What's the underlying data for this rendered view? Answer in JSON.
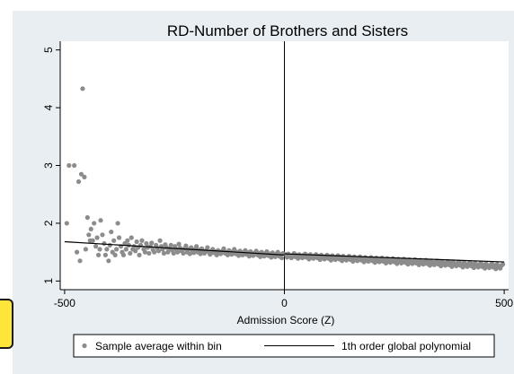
{
  "chart_data": {
    "type": "scatter",
    "title": "RD-Number of Brothers and Sisters",
    "xlabel": "Admission Score (Z)",
    "ylabel": "",
    "xlim": [
      -510,
      510
    ],
    "ylim": [
      0.85,
      5.15
    ],
    "x_ticks": [
      -500,
      0,
      500
    ],
    "x_tick_labels": [
      "-500",
      "0",
      "500"
    ],
    "y_ticks": [
      1,
      2,
      3,
      4,
      5
    ],
    "y_tick_labels": [
      "1",
      "2",
      "3",
      "4",
      "5"
    ],
    "cutoff_x": 0,
    "grid": false,
    "legend_position": "bottom",
    "series": [
      {
        "name": "Sample average within bin",
        "kind": "points",
        "color": "#8c8c8c",
        "points": [
          [
            -495,
            2.0
          ],
          [
            -490,
            3.0
          ],
          [
            -478,
            3.0
          ],
          [
            -472,
            1.5
          ],
          [
            -468,
            2.72
          ],
          [
            -465,
            1.35
          ],
          [
            -462,
            2.85
          ],
          [
            -459,
            4.33
          ],
          [
            -455,
            2.8
          ],
          [
            -452,
            1.55
          ],
          [
            -448,
            2.1
          ],
          [
            -445,
            1.8
          ],
          [
            -442,
            1.7
          ],
          [
            -440,
            1.9
          ],
          [
            -436,
            1.7
          ],
          [
            -433,
            2.0
          ],
          [
            -429,
            1.6
          ],
          [
            -426,
            1.75
          ],
          [
            -423,
            1.45
          ],
          [
            -420,
            1.55
          ],
          [
            -418,
            2.05
          ],
          [
            -414,
            1.8
          ],
          [
            -410,
            1.65
          ],
          [
            -407,
            1.45
          ],
          [
            -404,
            1.55
          ],
          [
            -400,
            1.35
          ],
          [
            -397,
            1.62
          ],
          [
            -394,
            1.85
          ],
          [
            -391,
            1.5
          ],
          [
            -388,
            1.7
          ],
          [
            -385,
            1.45
          ],
          [
            -382,
            1.55
          ],
          [
            -379,
            2.0
          ],
          [
            -376,
            1.75
          ],
          [
            -372,
            1.6
          ],
          [
            -369,
            1.5
          ],
          [
            -366,
            1.45
          ],
          [
            -363,
            1.65
          ],
          [
            -360,
            1.55
          ],
          [
            -357,
            1.7
          ],
          [
            -354,
            1.62
          ],
          [
            -351,
            1.48
          ],
          [
            -348,
            1.75
          ],
          [
            -345,
            1.55
          ],
          [
            -342,
            1.6
          ],
          [
            -339,
            1.52
          ],
          [
            -336,
            1.68
          ],
          [
            -333,
            1.58
          ],
          [
            -330,
            1.45
          ],
          [
            -327,
            1.62
          ],
          [
            -324,
            1.7
          ],
          [
            -320,
            1.55
          ],
          [
            -317,
            1.5
          ],
          [
            -314,
            1.65
          ],
          [
            -311,
            1.58
          ],
          [
            -308,
            1.48
          ],
          [
            -305,
            1.6
          ],
          [
            -302,
            1.66
          ],
          [
            -299,
            1.54
          ],
          [
            -296,
            1.5
          ],
          [
            -292,
            1.62
          ],
          [
            -289,
            1.57
          ],
          [
            -286,
            1.52
          ],
          [
            -283,
            1.7
          ],
          [
            -280,
            1.6
          ],
          [
            -277,
            1.55
          ],
          [
            -274,
            1.48
          ],
          [
            -271,
            1.63
          ],
          [
            -268,
            1.58
          ],
          [
            -265,
            1.5
          ],
          [
            -261,
            1.56
          ],
          [
            -258,
            1.62
          ],
          [
            -255,
            1.53
          ],
          [
            -252,
            1.48
          ],
          [
            -249,
            1.6
          ],
          [
            -246,
            1.55
          ],
          [
            -243,
            1.5
          ],
          [
            -240,
            1.64
          ],
          [
            -237,
            1.57
          ],
          [
            -234,
            1.52
          ],
          [
            -230,
            1.48
          ],
          [
            -227,
            1.56
          ],
          [
            -224,
            1.61
          ],
          [
            -221,
            1.5
          ],
          [
            -218,
            1.55
          ],
          [
            -215,
            1.47
          ],
          [
            -212,
            1.58
          ],
          [
            -209,
            1.52
          ],
          [
            -206,
            1.49
          ],
          [
            -203,
            1.55
          ],
          [
            -200,
            1.6
          ],
          [
            -197,
            1.5
          ],
          [
            -194,
            1.54
          ],
          [
            -191,
            1.47
          ],
          [
            -188,
            1.56
          ],
          [
            -185,
            1.51
          ],
          [
            -182,
            1.48
          ],
          [
            -178,
            1.53
          ],
          [
            -175,
            1.58
          ],
          [
            -172,
            1.5
          ],
          [
            -169,
            1.46
          ],
          [
            -166,
            1.52
          ],
          [
            -163,
            1.55
          ],
          [
            -160,
            1.49
          ],
          [
            -157,
            1.51
          ],
          [
            -154,
            1.45
          ],
          [
            -151,
            1.53
          ],
          [
            -148,
            1.5
          ],
          [
            -145,
            1.47
          ],
          [
            -141,
            1.52
          ],
          [
            -138,
            1.56
          ],
          [
            -135,
            1.48
          ],
          [
            -132,
            1.5
          ],
          [
            -129,
            1.45
          ],
          [
            -126,
            1.53
          ],
          [
            -123,
            1.49
          ],
          [
            -120,
            1.46
          ],
          [
            -117,
            1.51
          ],
          [
            -114,
            1.55
          ],
          [
            -111,
            1.47
          ],
          [
            -108,
            1.5
          ],
          [
            -104,
            1.44
          ],
          [
            -101,
            1.52
          ],
          [
            -98,
            1.48
          ],
          [
            -95,
            1.45
          ],
          [
            -92,
            1.5
          ],
          [
            -89,
            1.53
          ],
          [
            -86,
            1.46
          ],
          [
            -83,
            1.49
          ],
          [
            -80,
            1.43
          ],
          [
            -77,
            1.51
          ],
          [
            -74,
            1.47
          ],
          [
            -71,
            1.44
          ],
          [
            -67,
            1.49
          ],
          [
            -64,
            1.52
          ],
          [
            -61,
            1.45
          ],
          [
            -58,
            1.48
          ],
          [
            -55,
            1.42
          ],
          [
            -52,
            1.5
          ],
          [
            -49,
            1.46
          ],
          [
            -46,
            1.43
          ],
          [
            -43,
            1.48
          ],
          [
            -40,
            1.51
          ],
          [
            -37,
            1.44
          ],
          [
            -33,
            1.47
          ],
          [
            -30,
            1.41
          ],
          [
            -27,
            1.49
          ],
          [
            -24,
            1.45
          ],
          [
            -21,
            1.42
          ],
          [
            -18,
            1.47
          ],
          [
            -15,
            1.5
          ],
          [
            -12,
            1.43
          ],
          [
            -9,
            1.46
          ],
          [
            -6,
            1.4
          ],
          [
            -3,
            1.48
          ],
          [
            3,
            1.46
          ],
          [
            6,
            1.41
          ],
          [
            9,
            1.47
          ],
          [
            12,
            1.44
          ],
          [
            16,
            1.4
          ],
          [
            19,
            1.45
          ],
          [
            22,
            1.48
          ],
          [
            25,
            1.42
          ],
          [
            28,
            1.45
          ],
          [
            31,
            1.39
          ],
          [
            34,
            1.46
          ],
          [
            37,
            1.43
          ],
          [
            41,
            1.4
          ],
          [
            44,
            1.45
          ],
          [
            47,
            1.47
          ],
          [
            50,
            1.41
          ],
          [
            53,
            1.44
          ],
          [
            56,
            1.38
          ],
          [
            59,
            1.46
          ],
          [
            62,
            1.42
          ],
          [
            66,
            1.39
          ],
          [
            69,
            1.44
          ],
          [
            72,
            1.46
          ],
          [
            75,
            1.4
          ],
          [
            78,
            1.43
          ],
          [
            81,
            1.37
          ],
          [
            84,
            1.45
          ],
          [
            87,
            1.41
          ],
          [
            91,
            1.38
          ],
          [
            94,
            1.43
          ],
          [
            97,
            1.45
          ],
          [
            100,
            1.39
          ],
          [
            103,
            1.42
          ],
          [
            106,
            1.36
          ],
          [
            109,
            1.44
          ],
          [
            112,
            1.4
          ],
          [
            116,
            1.37
          ],
          [
            119,
            1.42
          ],
          [
            122,
            1.44
          ],
          [
            125,
            1.38
          ],
          [
            128,
            1.41
          ],
          [
            131,
            1.35
          ],
          [
            134,
            1.43
          ],
          [
            137,
            1.39
          ],
          [
            141,
            1.36
          ],
          [
            144,
            1.41
          ],
          [
            147,
            1.43
          ],
          [
            150,
            1.37
          ],
          [
            153,
            1.4
          ],
          [
            156,
            1.34
          ],
          [
            159,
            1.42
          ],
          [
            162,
            1.38
          ],
          [
            166,
            1.35
          ],
          [
            169,
            1.4
          ],
          [
            172,
            1.42
          ],
          [
            175,
            1.36
          ],
          [
            178,
            1.39
          ],
          [
            181,
            1.33
          ],
          [
            184,
            1.41
          ],
          [
            187,
            1.37
          ],
          [
            191,
            1.34
          ],
          [
            194,
            1.39
          ],
          [
            197,
            1.41
          ],
          [
            200,
            1.35
          ],
          [
            203,
            1.38
          ],
          [
            206,
            1.32
          ],
          [
            209,
            1.4
          ],
          [
            212,
            1.36
          ],
          [
            216,
            1.33
          ],
          [
            219,
            1.38
          ],
          [
            222,
            1.4
          ],
          [
            225,
            1.34
          ],
          [
            228,
            1.37
          ],
          [
            231,
            1.31
          ],
          [
            234,
            1.39
          ],
          [
            237,
            1.35
          ],
          [
            241,
            1.32
          ],
          [
            244,
            1.37
          ],
          [
            247,
            1.39
          ],
          [
            250,
            1.33
          ],
          [
            253,
            1.36
          ],
          [
            256,
            1.3
          ],
          [
            259,
            1.38
          ],
          [
            262,
            1.34
          ],
          [
            266,
            1.31
          ],
          [
            269,
            1.36
          ],
          [
            272,
            1.38
          ],
          [
            275,
            1.32
          ],
          [
            278,
            1.35
          ],
          [
            281,
            1.29
          ],
          [
            284,
            1.37
          ],
          [
            287,
            1.33
          ],
          [
            291,
            1.3
          ],
          [
            294,
            1.35
          ],
          [
            297,
            1.37
          ],
          [
            300,
            1.31
          ],
          [
            303,
            1.34
          ],
          [
            306,
            1.28
          ],
          [
            309,
            1.36
          ],
          [
            312,
            1.32
          ],
          [
            316,
            1.29
          ],
          [
            319,
            1.34
          ],
          [
            322,
            1.36
          ],
          [
            325,
            1.3
          ],
          [
            328,
            1.33
          ],
          [
            331,
            1.27
          ],
          [
            334,
            1.35
          ],
          [
            337,
            1.31
          ],
          [
            341,
            1.28
          ],
          [
            344,
            1.33
          ],
          [
            347,
            1.35
          ],
          [
            350,
            1.29
          ],
          [
            353,
            1.32
          ],
          [
            356,
            1.26
          ],
          [
            359,
            1.34
          ],
          [
            362,
            1.3
          ],
          [
            366,
            1.27
          ],
          [
            369,
            1.32
          ],
          [
            372,
            1.34
          ],
          [
            375,
            1.28
          ],
          [
            378,
            1.31
          ],
          [
            381,
            1.25
          ],
          [
            384,
            1.33
          ],
          [
            387,
            1.29
          ],
          [
            391,
            1.26
          ],
          [
            394,
            1.31
          ],
          [
            397,
            1.33
          ],
          [
            400,
            1.27
          ],
          [
            403,
            1.3
          ],
          [
            406,
            1.24
          ],
          [
            409,
            1.32
          ],
          [
            412,
            1.28
          ],
          [
            416,
            1.25
          ],
          [
            419,
            1.3
          ],
          [
            422,
            1.32
          ],
          [
            425,
            1.26
          ],
          [
            428,
            1.29
          ],
          [
            431,
            1.23
          ],
          [
            434,
            1.31
          ],
          [
            437,
            1.27
          ],
          [
            441,
            1.24
          ],
          [
            444,
            1.29
          ],
          [
            447,
            1.31
          ],
          [
            450,
            1.25
          ],
          [
            453,
            1.28
          ],
          [
            456,
            1.22
          ],
          [
            459,
            1.3
          ],
          [
            462,
            1.26
          ],
          [
            466,
            1.23
          ],
          [
            469,
            1.28
          ],
          [
            472,
            1.3
          ],
          [
            475,
            1.24
          ],
          [
            478,
            1.27
          ],
          [
            481,
            1.21
          ],
          [
            484,
            1.29
          ],
          [
            487,
            1.25
          ],
          [
            491,
            1.22
          ],
          [
            494,
            1.27
          ],
          [
            497,
            1.29
          ]
        ]
      },
      {
        "name": "1th order global polynomial",
        "kind": "line",
        "color": "#000000",
        "segments": [
          {
            "x": [
              -500,
              0
            ],
            "y": [
              1.68,
              1.45
            ]
          },
          {
            "x": [
              0,
              500
            ],
            "y": [
              1.47,
              1.33
            ]
          }
        ]
      }
    ]
  }
}
